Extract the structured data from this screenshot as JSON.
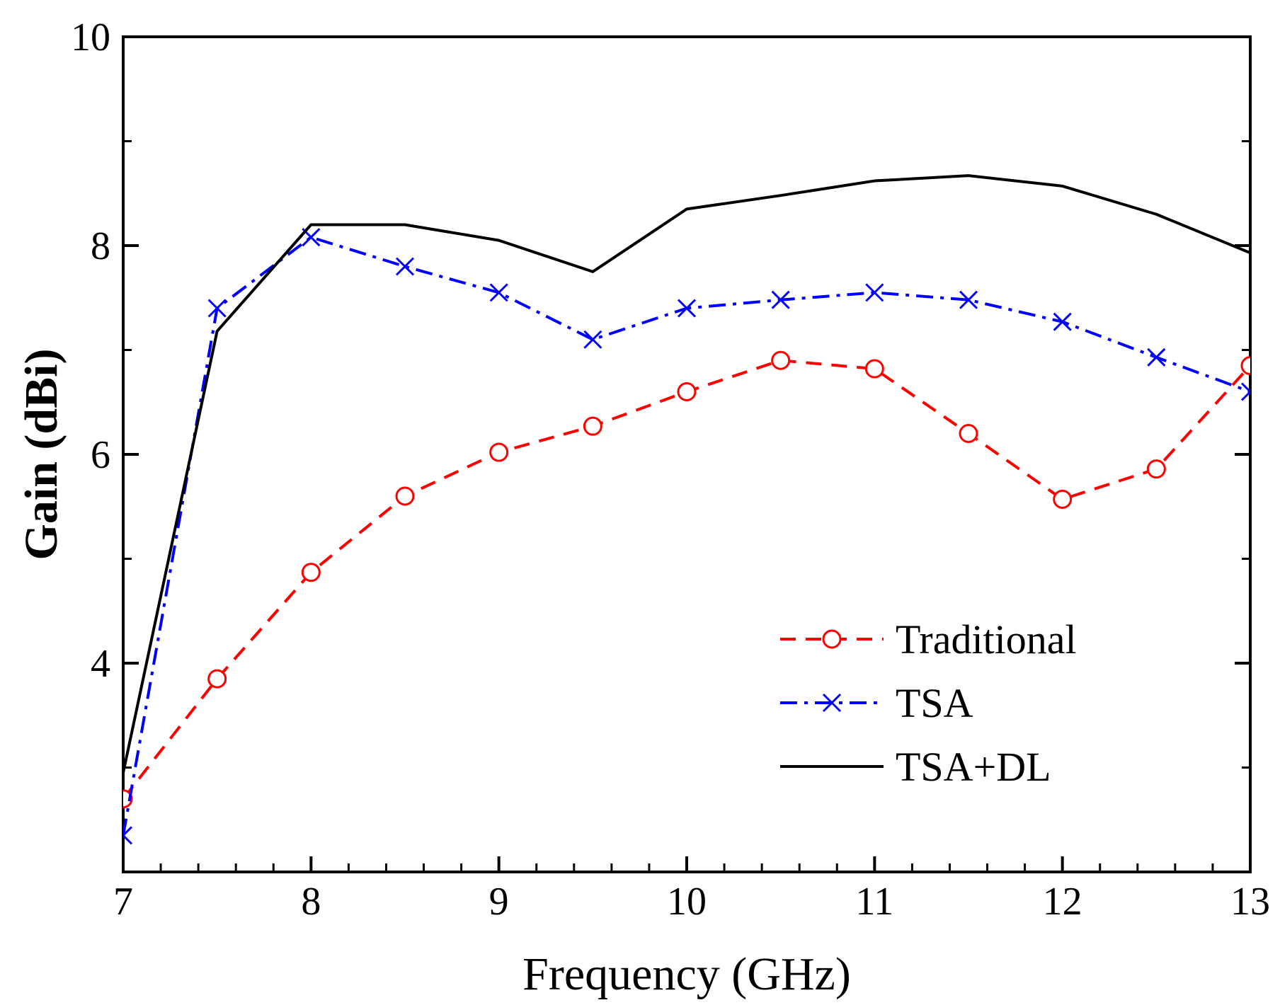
{
  "chart_data": {
    "type": "line",
    "xlabel": "Frequency (GHz)",
    "ylabel": "Gain (dBi)",
    "xlim": [
      7,
      13
    ],
    "ylim": [
      2,
      10
    ],
    "xticks": [
      7,
      8,
      9,
      10,
      11,
      12,
      13
    ],
    "yticks": [
      4,
      6,
      8,
      10
    ],
    "x": [
      7,
      7.5,
      8,
      8.5,
      9,
      9.5,
      10,
      10.5,
      11,
      11.5,
      12,
      12.5,
      13
    ],
    "grid": false,
    "legend_position": "bottom-right",
    "series": [
      {
        "name": "Traditional",
        "color": "#ff0000",
        "line_style": "dashed",
        "marker": "open-circle",
        "values": [
          2.7,
          3.85,
          4.87,
          5.6,
          6.02,
          6.27,
          6.6,
          6.9,
          6.82,
          6.2,
          5.57,
          5.86,
          6.85
        ]
      },
      {
        "name": "TSA",
        "color": "#0000ff",
        "line_style": "dash-dot",
        "marker": "x",
        "values": [
          2.35,
          7.4,
          8.08,
          7.8,
          7.55,
          7.1,
          7.4,
          7.48,
          7.55,
          7.48,
          7.27,
          6.93,
          6.6
        ]
      },
      {
        "name": "TSA+DL",
        "color": "#000000",
        "line_style": "solid",
        "marker": "none",
        "values": [
          2.95,
          7.18,
          8.2,
          8.2,
          8.05,
          7.75,
          8.35,
          8.48,
          8.62,
          8.67,
          8.57,
          8.3,
          7.93
        ]
      }
    ]
  }
}
